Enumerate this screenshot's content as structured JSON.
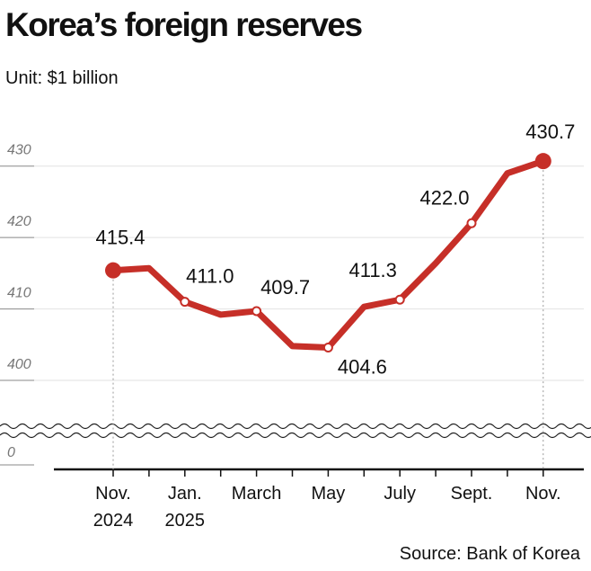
{
  "chart_data": {
    "type": "line",
    "title": "Korea’s foreign reserves",
    "subtitle": "Unit: $1 billion",
    "source": "Source: Bank of Korea",
    "categories": [
      "Nov.\n2024",
      null,
      "Jan.\n2025",
      null,
      "March",
      null,
      "May",
      null,
      "July",
      null,
      "Sept.",
      null,
      "Nov."
    ],
    "values": [
      415.4,
      415.7,
      411.0,
      409.2,
      409.7,
      404.8,
      404.6,
      410.3,
      411.3,
      416.4,
      422.0,
      429.0,
      430.7
    ],
    "value_labels": [
      "415.4",
      null,
      "411.0",
      null,
      "409.7",
      null,
      "404.6",
      null,
      "411.3",
      null,
      "422.0",
      null,
      "430.7"
    ],
    "color": "#c62f28",
    "ylim": [
      0,
      435
    ],
    "yticks": [
      0,
      400,
      410,
      420,
      430
    ],
    "axis_break": true,
    "grid": true
  }
}
